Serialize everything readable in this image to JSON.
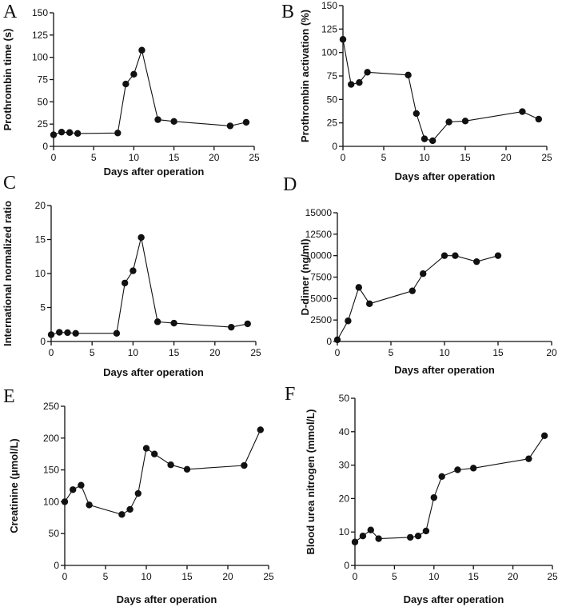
{
  "chart_data": [
    {
      "type": "line",
      "panel": "A",
      "xlabel": "Days after operation",
      "ylabel": "Prothrombin time (s)",
      "xlim": [
        0,
        25
      ],
      "ylim": [
        0,
        150
      ],
      "xticks": [
        0,
        5,
        10,
        15,
        20,
        25
      ],
      "yticks": [
        0,
        25,
        50,
        75,
        100,
        125,
        150
      ],
      "x": [
        0,
        1,
        2,
        3,
        8,
        9,
        10,
        11,
        13,
        15,
        22,
        24
      ],
      "values": [
        13,
        16,
        15.5,
        14.5,
        15,
        70,
        81,
        108,
        30,
        28,
        23,
        27
      ]
    },
    {
      "type": "line",
      "panel": "B",
      "xlabel": "Days after operation",
      "ylabel": "Prothrombin activation (%)",
      "xlim": [
        0,
        25
      ],
      "ylim": [
        0,
        150
      ],
      "xticks": [
        0,
        5,
        10,
        15,
        20,
        25
      ],
      "yticks": [
        0,
        25,
        50,
        75,
        100,
        125,
        150
      ],
      "x": [
        0,
        1,
        2,
        3,
        8,
        9,
        10,
        11,
        13,
        15,
        22,
        24
      ],
      "values": [
        114,
        66,
        68,
        79,
        76,
        35,
        8,
        6,
        26,
        27,
        37,
        29
      ]
    },
    {
      "type": "line",
      "panel": "C",
      "xlabel": "Days after operation",
      "ylabel": "International normalized ratio",
      "xlim": [
        0,
        25
      ],
      "ylim": [
        0,
        20
      ],
      "xticks": [
        0,
        5,
        10,
        15,
        20,
        25
      ],
      "yticks": [
        0,
        5,
        10,
        15,
        20
      ],
      "x": [
        0,
        1,
        2,
        3,
        8,
        9,
        10,
        11,
        13,
        15,
        22,
        24
      ],
      "values": [
        1.0,
        1.35,
        1.3,
        1.2,
        1.2,
        8.6,
        10.4,
        15.3,
        2.9,
        2.7,
        2.1,
        2.6
      ]
    },
    {
      "type": "line",
      "panel": "D",
      "xlabel": "Days after operation",
      "ylabel": "D-dimer (ng/ml)",
      "xlim": [
        0,
        20
      ],
      "ylim": [
        0,
        15000
      ],
      "xticks": [
        0,
        5,
        10,
        15,
        20
      ],
      "yticks": [
        0,
        2500,
        5000,
        7500,
        10000,
        12500,
        15000
      ],
      "x": [
        0,
        1,
        2,
        3,
        7,
        8,
        10,
        11,
        13,
        15
      ],
      "values": [
        200,
        2400,
        6300,
        4400,
        5900,
        7900,
        10000,
        10000,
        9300,
        10000
      ]
    },
    {
      "type": "line",
      "panel": "E",
      "xlabel": "Days after operation",
      "ylabel": "Creatinine (μmol/L)",
      "xlim": [
        0,
        25
      ],
      "ylim": [
        0,
        250
      ],
      "xticks": [
        0,
        5,
        10,
        15,
        20,
        25
      ],
      "yticks": [
        0,
        50,
        100,
        150,
        200,
        250
      ],
      "x": [
        0,
        1,
        2,
        3,
        7,
        8,
        9,
        10,
        11,
        13,
        15,
        22,
        24
      ],
      "values": [
        100,
        119,
        126,
        95,
        80,
        88,
        113,
        184,
        175,
        158,
        151,
        157,
        213
      ]
    },
    {
      "type": "line",
      "panel": "F",
      "xlabel": "Days after operation",
      "ylabel": "Blood urea nitrogen (mmol/L)",
      "xlim": [
        0,
        25
      ],
      "ylim": [
        0,
        50
      ],
      "xticks": [
        0,
        5,
        10,
        15,
        20,
        25
      ],
      "yticks": [
        0,
        10,
        20,
        30,
        40,
        50
      ],
      "x": [
        0,
        1,
        2,
        3,
        7,
        8,
        9,
        10,
        11,
        13,
        15,
        22,
        24
      ],
      "values": [
        7,
        8.8,
        10.6,
        8,
        8.4,
        8.8,
        10.3,
        20.3,
        26.6,
        28.6,
        29.1,
        31.9,
        38.8
      ]
    }
  ]
}
